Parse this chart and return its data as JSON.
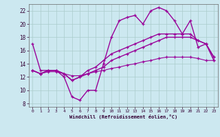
{
  "xlabel": "Windchill (Refroidissement éolien,°C)",
  "bg_color": "#cce8f0",
  "line_color": "#990099",
  "grid_color": "#aacccc",
  "xlim": [
    -0.5,
    23.5
  ],
  "ylim": [
    7.5,
    23.0
  ],
  "yticks": [
    8,
    10,
    12,
    14,
    16,
    18,
    20,
    22
  ],
  "xticks": [
    0,
    1,
    2,
    3,
    4,
    5,
    6,
    7,
    8,
    9,
    10,
    11,
    12,
    13,
    14,
    15,
    16,
    17,
    18,
    19,
    20,
    21,
    22,
    23
  ],
  "lines": [
    {
      "x": [
        0,
        1,
        2,
        3,
        4,
        5,
        6,
        7,
        8,
        9,
        10,
        11,
        12,
        13,
        14,
        15,
        16,
        17,
        18,
        19,
        20,
        21,
        22,
        23
      ],
      "y": [
        17,
        13,
        13,
        13,
        12,
        9,
        8.5,
        10,
        10,
        14,
        18,
        20.5,
        21,
        21.3,
        20,
        22,
        22.5,
        22,
        20.5,
        18.5,
        20.5,
        16.5,
        17,
        15
      ]
    },
    {
      "x": [
        0,
        1,
        2,
        3,
        4,
        5,
        6,
        7,
        8,
        9,
        10,
        11,
        12,
        13,
        14,
        15,
        16,
        17,
        18,
        19,
        20,
        21,
        22,
        23
      ],
      "y": [
        13,
        12.5,
        13,
        13,
        12.5,
        11.5,
        12,
        13,
        13.5,
        14.5,
        15.5,
        16.0,
        16.5,
        17.0,
        17.5,
        18.0,
        18.5,
        18.5,
        18.5,
        18.5,
        18.5,
        17.5,
        17.0,
        15.0
      ]
    },
    {
      "x": [
        0,
        1,
        2,
        3,
        4,
        5,
        6,
        7,
        8,
        9,
        10,
        11,
        12,
        13,
        14,
        15,
        16,
        17,
        18,
        19,
        20,
        21,
        22,
        23
      ],
      "y": [
        13,
        12.5,
        13,
        13,
        12.5,
        11.5,
        12,
        12.5,
        13,
        13.5,
        14.5,
        15.0,
        15.5,
        16.0,
        16.5,
        17.0,
        17.5,
        18.0,
        18.0,
        18.0,
        18.0,
        17.5,
        17.0,
        14.5
      ]
    },
    {
      "x": [
        0,
        1,
        2,
        3,
        4,
        5,
        6,
        7,
        8,
        9,
        10,
        11,
        12,
        13,
        14,
        15,
        16,
        17,
        18,
        19,
        20,
        21,
        22,
        23
      ],
      "y": [
        13,
        12.5,
        12.8,
        12.8,
        12.5,
        12.2,
        12.2,
        12.5,
        12.8,
        13.0,
        13.3,
        13.5,
        13.8,
        14.0,
        14.3,
        14.5,
        14.8,
        15.0,
        15.0,
        15.0,
        15.0,
        14.8,
        14.5,
        14.5
      ]
    }
  ]
}
